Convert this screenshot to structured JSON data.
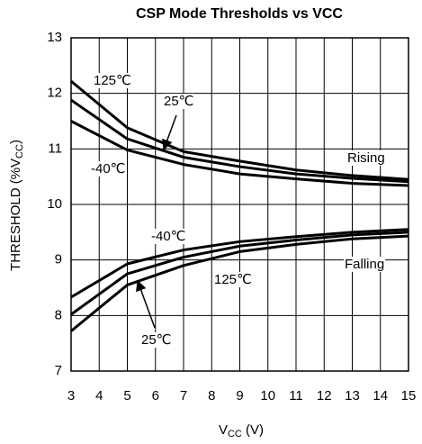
{
  "chart_data": {
    "type": "line",
    "title": "CSP Mode Thresholds vs VCC",
    "x_label": {
      "main": "V",
      "sub": "CC",
      "end": " (V)"
    },
    "y_label": {
      "main": "THRESHOLD (%V",
      "sub": "CC",
      "end": ")"
    },
    "x": [
      3,
      5,
      7,
      9,
      11,
      13,
      15
    ],
    "series": [
      {
        "color": "#000000",
        "values": [
          12.22,
          11.38,
          10.95,
          10.78,
          10.62,
          10.52,
          10.45
        ]
      },
      {
        "color": "#000000",
        "values": [
          11.88,
          11.18,
          10.85,
          10.68,
          10.55,
          10.47,
          10.41
        ]
      },
      {
        "color": "#000000",
        "values": [
          11.5,
          10.98,
          10.72,
          10.55,
          10.46,
          10.38,
          10.34
        ]
      },
      {
        "color": "#000000",
        "values": [
          8.33,
          8.93,
          9.18,
          9.33,
          9.42,
          9.5,
          9.55
        ]
      },
      {
        "color": "#000000",
        "values": [
          8.02,
          8.75,
          9.05,
          9.25,
          9.36,
          9.45,
          9.5
        ]
      },
      {
        "color": "#000000",
        "values": [
          7.72,
          8.55,
          8.9,
          9.15,
          9.28,
          9.38,
          9.43
        ]
      }
    ],
    "annotations": [
      "125℃",
      "25℃",
      "-40℃",
      "Rising",
      "-40℃",
      "Falling",
      "125℃",
      "25℃"
    ],
    "xlim": [
      3,
      15
    ],
    "xticks": [
      3,
      4,
      5,
      6,
      7,
      8,
      9,
      10,
      11,
      12,
      13,
      14,
      15
    ],
    "ylim": [
      7,
      13
    ],
    "yticks": [
      7,
      8,
      9,
      10,
      11,
      12,
      13
    ],
    "grid": true
  }
}
